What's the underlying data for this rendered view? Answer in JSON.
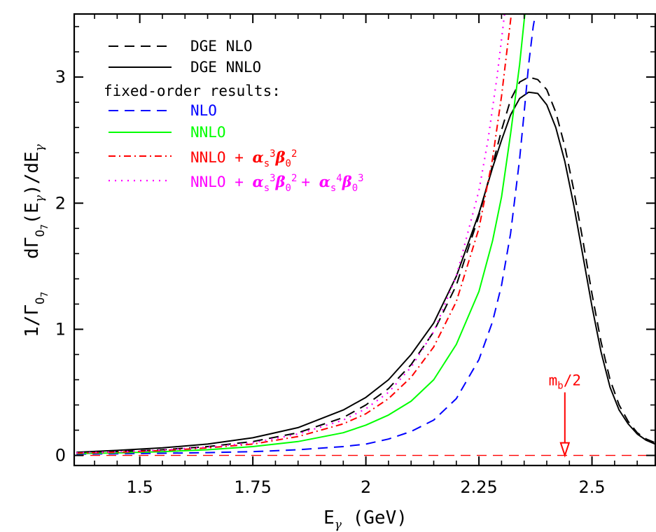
{
  "chart_data": {
    "type": "line",
    "xlabel_main": "E",
    "xlabel_sub": "γ",
    "xlabel_unit": " (GeV)",
    "ylabel_parts": {
      "a": "1/Γ",
      "a_sub": "O",
      "a_subsub": "7",
      "b": "dΓ",
      "b_sub": "O",
      "b_subsub": "7",
      "c": "(E",
      "c_sub": "γ",
      "d": ")/dE",
      "d_sub": "γ"
    },
    "xlim": [
      1.355,
      2.64
    ],
    "ylim": [
      -0.08,
      3.5
    ],
    "xticks": [
      1.5,
      1.75,
      2.0,
      2.25,
      2.5
    ],
    "xtick_labels": [
      "1.5",
      "1.75",
      "2",
      "2.25",
      "2.5"
    ],
    "yticks": [
      0,
      1,
      2,
      3
    ],
    "ytick_labels": [
      "0",
      "1",
      "2",
      "3"
    ],
    "annotation": {
      "text_main": "m",
      "text_sub": "b",
      "text_rest": "/2",
      "x": 2.44,
      "arrow_from_y": 0.5,
      "arrow_to_y": 0.0
    },
    "reference_line": {
      "y": 0,
      "color": "#ff0000",
      "dash": "dashed"
    },
    "legend_header": "fixed-order results:",
    "series": [
      {
        "name": "DGE NLO",
        "color": "#000000",
        "dash": "dashed",
        "x": [
          1.36,
          1.45,
          1.55,
          1.65,
          1.75,
          1.85,
          1.95,
          2.0,
          2.05,
          2.1,
          2.15,
          2.2,
          2.25,
          2.28,
          2.3,
          2.32,
          2.34,
          2.36,
          2.38,
          2.4,
          2.42,
          2.44,
          2.46,
          2.48,
          2.5,
          2.52,
          2.54,
          2.56,
          2.58,
          2.6,
          2.62,
          2.64
        ],
        "y": [
          0.02,
          0.03,
          0.045,
          0.07,
          0.11,
          0.18,
          0.3,
          0.4,
          0.53,
          0.72,
          0.98,
          1.35,
          1.9,
          2.3,
          2.58,
          2.82,
          2.96,
          3.0,
          2.98,
          2.9,
          2.72,
          2.45,
          2.1,
          1.7,
          1.28,
          0.9,
          0.6,
          0.4,
          0.27,
          0.18,
          0.13,
          0.1
        ]
      },
      {
        "name": "DGE NNLO",
        "color": "#000000",
        "dash": "solid",
        "x": [
          1.36,
          1.45,
          1.55,
          1.65,
          1.75,
          1.85,
          1.95,
          2.0,
          2.05,
          2.1,
          2.15,
          2.2,
          2.25,
          2.28,
          2.3,
          2.32,
          2.34,
          2.36,
          2.38,
          2.4,
          2.42,
          2.44,
          2.46,
          2.48,
          2.5,
          2.52,
          2.54,
          2.56,
          2.58,
          2.6,
          2.62,
          2.64
        ],
        "y": [
          0.025,
          0.04,
          0.06,
          0.09,
          0.14,
          0.22,
          0.36,
          0.46,
          0.6,
          0.8,
          1.05,
          1.42,
          1.92,
          2.28,
          2.5,
          2.7,
          2.83,
          2.88,
          2.87,
          2.78,
          2.6,
          2.33,
          1.98,
          1.58,
          1.18,
          0.82,
          0.54,
          0.36,
          0.25,
          0.17,
          0.12,
          0.09
        ]
      },
      {
        "name": "NLO",
        "color": "#0000ff",
        "dash": "dashed",
        "x": [
          1.36,
          1.45,
          1.55,
          1.65,
          1.75,
          1.85,
          1.95,
          2.0,
          2.05,
          2.1,
          2.15,
          2.2,
          2.25,
          2.28,
          2.3,
          2.32,
          2.34,
          2.35,
          2.36,
          2.37,
          2.375,
          2.38,
          2.385
        ],
        "y": [
          0.01,
          0.013,
          0.017,
          0.022,
          0.03,
          0.045,
          0.07,
          0.09,
          0.13,
          0.19,
          0.28,
          0.45,
          0.76,
          1.06,
          1.35,
          1.76,
          2.35,
          2.72,
          3.1,
          3.4,
          3.5,
          3.6,
          3.8
        ]
      },
      {
        "name": "NNLO",
        "color": "#00ff00",
        "dash": "solid",
        "x": [
          1.36,
          1.45,
          1.55,
          1.65,
          1.75,
          1.85,
          1.95,
          2.0,
          2.05,
          2.1,
          2.15,
          2.2,
          2.25,
          2.28,
          2.3,
          2.32,
          2.34,
          2.35,
          2.355,
          2.36
        ],
        "y": [
          0.015,
          0.02,
          0.03,
          0.045,
          0.07,
          0.11,
          0.18,
          0.24,
          0.32,
          0.43,
          0.6,
          0.88,
          1.3,
          1.7,
          2.05,
          2.55,
          3.1,
          3.45,
          3.6,
          3.8
        ]
      },
      {
        "name": "NNLO + α_s^3 β_0^2",
        "name_parts": {
          "base": "NNLO + ",
          "alpha": "α",
          "s": "s",
          "p3": "3",
          "beta": "β",
          "z": "0",
          "p2": "2"
        },
        "color": "#ff0000",
        "dash": "dashdot",
        "x": [
          1.36,
          1.45,
          1.55,
          1.65,
          1.75,
          1.85,
          1.95,
          2.0,
          2.05,
          2.1,
          2.15,
          2.2,
          2.25,
          2.28,
          2.3,
          2.31,
          2.32,
          2.33,
          2.335
        ],
        "y": [
          0.018,
          0.025,
          0.038,
          0.06,
          0.09,
          0.15,
          0.25,
          0.33,
          0.45,
          0.62,
          0.86,
          1.22,
          1.8,
          2.35,
          2.85,
          3.15,
          3.45,
          3.75,
          3.9
        ]
      },
      {
        "name": "NNLO + α_s^3 β_0^2 + α_s^4 β_0^3",
        "name_parts": {
          "base": "NNLO + ",
          "alpha": "α",
          "s": "s",
          "p3": "3",
          "beta": "β",
          "z": "0",
          "p2": "2",
          "plus": "+ ",
          "alpha2": "α",
          "s2": "s",
          "p4": "4",
          "beta2": "β",
          "z2": "0",
          "p3b": "3"
        },
        "color": "#ff00ff",
        "dash": "dotted",
        "x": [
          1.36,
          1.45,
          1.55,
          1.65,
          1.75,
          1.85,
          1.95,
          2.0,
          2.05,
          2.1,
          2.15,
          2.2,
          2.25,
          2.27,
          2.29,
          2.3,
          2.31,
          2.32
        ],
        "y": [
          0.02,
          0.028,
          0.042,
          0.066,
          0.1,
          0.17,
          0.28,
          0.37,
          0.5,
          0.7,
          0.98,
          1.42,
          2.1,
          2.5,
          3.0,
          3.3,
          3.6,
          3.9
        ]
      }
    ]
  }
}
